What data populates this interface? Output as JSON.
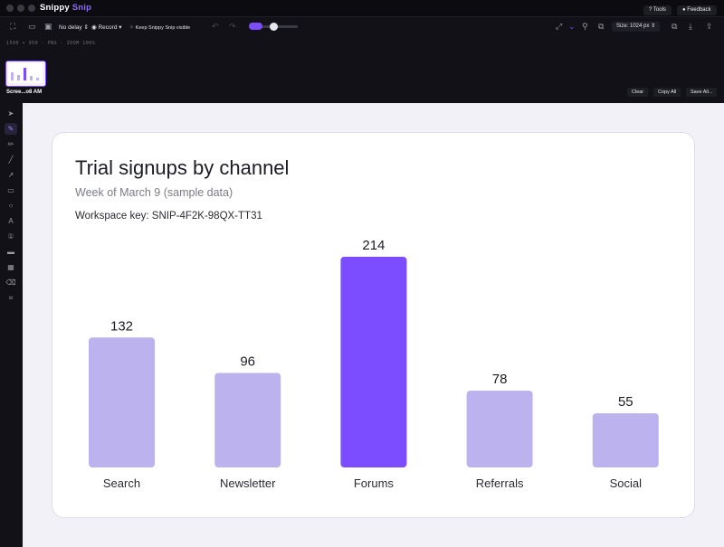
{
  "app": {
    "name_main": "Snippy",
    "name_accent": "Snip"
  },
  "titlebar": {
    "tools_label": "Tools",
    "feedback_label": "Feedback"
  },
  "toolbar": {
    "delay_label": "No delay",
    "record_label": "Record",
    "keep_visible_label": "Keep Snippy Snip visible",
    "size_label": "Size: 1024 px"
  },
  "meta": {
    "text": "1500 × 950   ·   PNG   ·   ZOOM 100%"
  },
  "thumbnails": {
    "caption": "Scree...o8 AM"
  },
  "strip": {
    "clear_label": "Clear",
    "copy_all_label": "Copy All",
    "save_all_label": "Save All..."
  },
  "icons": {
    "rail": [
      "pointer-icon",
      "pen-icon",
      "pencil-icon",
      "line-icon",
      "arrow-icon",
      "rectangle-icon",
      "ellipse-icon",
      "text-icon",
      "step-icon",
      "highlight-icon",
      "pixelate-icon",
      "eraser-icon",
      "crop-icon"
    ]
  },
  "colors": {
    "accent": "#7c4dff",
    "bar_muted": "#bcb3ee",
    "bar_highlight": "#7c4dff"
  },
  "chart_data": {
    "type": "bar",
    "title": "Trial signups by channel",
    "subtitle": "Week of March 9 (sample data)",
    "note": "Workspace key: SNIP-4F2K-98QX-TT31",
    "categories": [
      "Search",
      "Newsletter",
      "Forums",
      "Referrals",
      "Social"
    ],
    "values": [
      132,
      96,
      214,
      78,
      55
    ],
    "highlight_index": 2,
    "ylim": [
      0,
      214
    ],
    "grid": false
  }
}
